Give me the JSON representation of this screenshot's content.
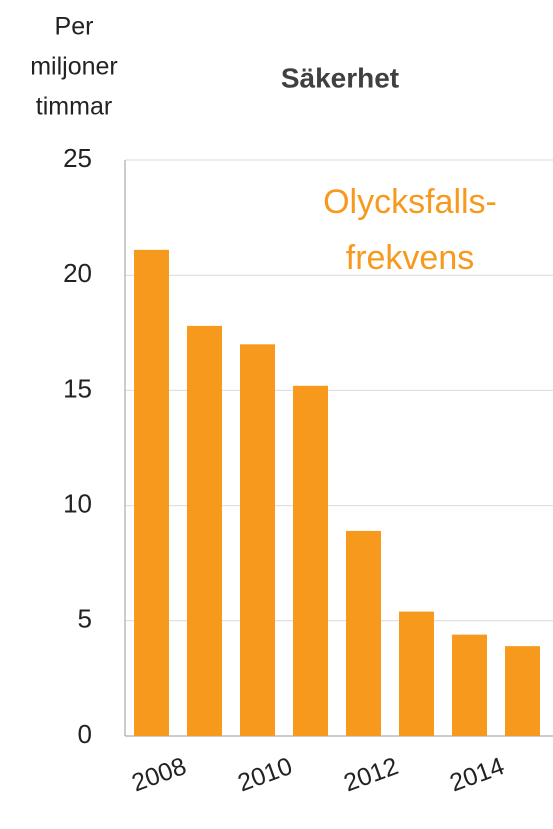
{
  "chart_data": {
    "type": "bar",
    "title": "Säkerhet",
    "y_label": [
      "Per",
      "miljoner",
      "timmar"
    ],
    "annotation": [
      "Olycksfalls-",
      "frekvens"
    ],
    "categories": [
      "2008",
      null,
      "2010",
      null,
      "2012",
      null,
      "2014",
      null
    ],
    "values": [
      21.1,
      17.8,
      17.0,
      15.2,
      8.9,
      5.4,
      4.4,
      3.9
    ],
    "color": "#f7991c",
    "ylim": [
      0,
      25
    ],
    "yticks": [
      0,
      5,
      10,
      15,
      20,
      25
    ],
    "grid": true
  }
}
